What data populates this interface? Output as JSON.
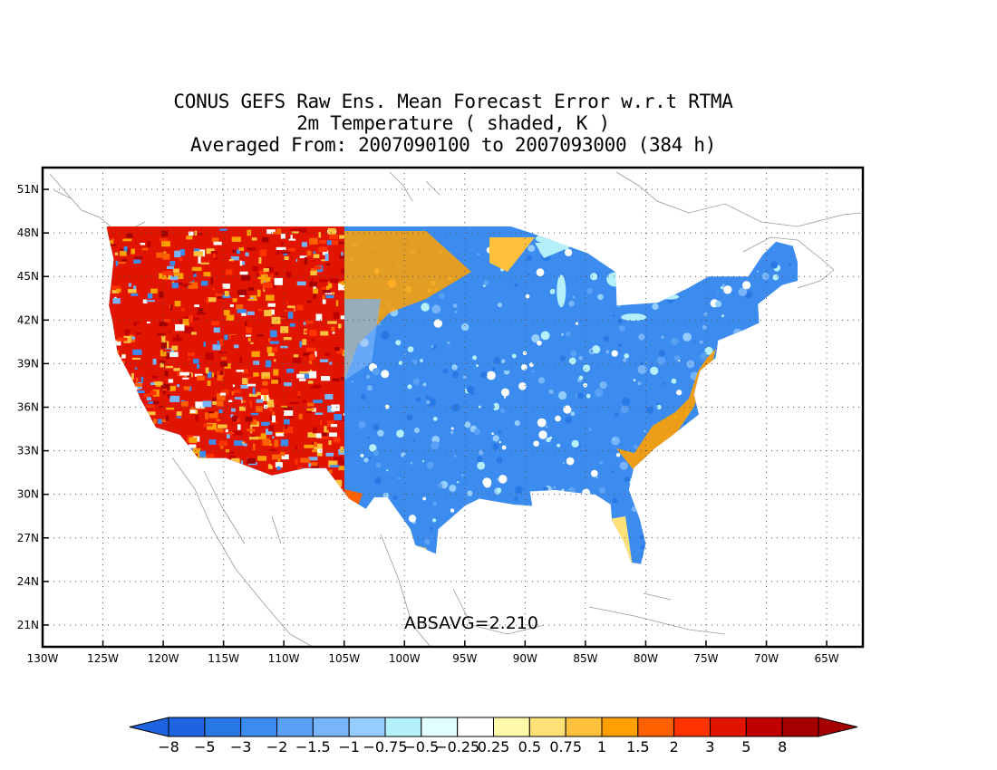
{
  "title": {
    "line1": "CONUS GEFS Raw Ens. Mean Forecast Error w.r.t RTMA",
    "line2": "2m Temperature ( shaded, K )",
    "line3": "Averaged From: 2007090100 to 2007093000 (384 h)"
  },
  "statistic": "ABSAVG=2.210",
  "axes": {
    "lat_labels": [
      "51N",
      "48N",
      "45N",
      "42N",
      "39N",
      "36N",
      "33N",
      "30N",
      "27N",
      "24N",
      "21N"
    ],
    "lat_values": [
      51,
      48,
      45,
      42,
      39,
      36,
      33,
      30,
      27,
      24,
      21
    ],
    "lon_labels": [
      "130W",
      "125W",
      "120W",
      "115W",
      "110W",
      "105W",
      "100W",
      "95W",
      "90W",
      "85W",
      "80W",
      "75W",
      "70W",
      "65W"
    ],
    "lon_values": [
      -130,
      -125,
      -120,
      -115,
      -110,
      -105,
      -100,
      -95,
      -90,
      -85,
      -80,
      -75,
      -70,
      -65
    ],
    "lon_range": [
      -130,
      -62
    ],
    "lat_range": [
      19.5,
      52.5
    ],
    "grid": "dotted"
  },
  "colorbar": {
    "labels": [
      "−8",
      "−5",
      "−3",
      "−2",
      "−1.5",
      "−1",
      "−0.75",
      "−0.5",
      "−0.25",
      "0.25",
      "0.5",
      "0.75",
      "1",
      "1.5",
      "2",
      "3",
      "5",
      "8"
    ],
    "colors": [
      "#1e64e1",
      "#2878e6",
      "#3c8cf0",
      "#5aa0f5",
      "#78b4fa",
      "#96cdff",
      "#b4f0fa",
      "#e1ffff",
      "#ffffff",
      "#fffaaa",
      "#ffe178",
      "#ffc03c",
      "#ffa000",
      "#ff6000",
      "#ff3200",
      "#e11400",
      "#c00000",
      "#a50000"
    ],
    "left_arrow_color": "#1e64e1",
    "right_arrow_color": "#a50000"
  },
  "legend_meaning": "warm colors = positive error, cool colors = negative error"
}
